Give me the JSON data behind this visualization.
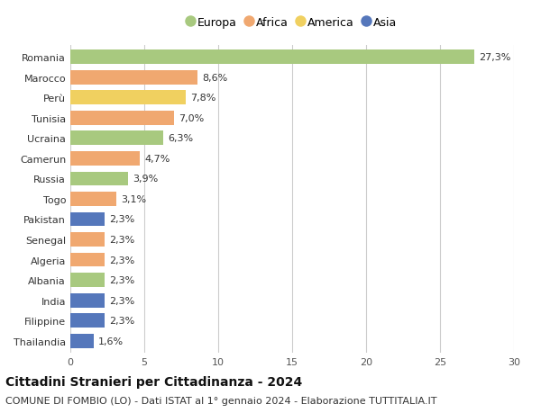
{
  "countries": [
    "Romania",
    "Marocco",
    "Perù",
    "Tunisia",
    "Ucraina",
    "Camerun",
    "Russia",
    "Togo",
    "Pakistan",
    "Senegal",
    "Algeria",
    "Albania",
    "India",
    "Filippine",
    "Thailandia"
  ],
  "values": [
    27.3,
    8.6,
    7.8,
    7.0,
    6.3,
    4.7,
    3.9,
    3.1,
    2.3,
    2.3,
    2.3,
    2.3,
    2.3,
    2.3,
    1.6
  ],
  "labels": [
    "27,3%",
    "8,6%",
    "7,8%",
    "7,0%",
    "6,3%",
    "4,7%",
    "3,9%",
    "3,1%",
    "2,3%",
    "2,3%",
    "2,3%",
    "2,3%",
    "2,3%",
    "2,3%",
    "1,6%"
  ],
  "continents": [
    "Europa",
    "Africa",
    "America",
    "Africa",
    "Europa",
    "Africa",
    "Europa",
    "Africa",
    "Asia",
    "Africa",
    "Africa",
    "Europa",
    "Asia",
    "Asia",
    "Asia"
  ],
  "colors": {
    "Europa": "#a8c97f",
    "Africa": "#f0a870",
    "America": "#f0d060",
    "Asia": "#5577bb"
  },
  "legend_order": [
    "Europa",
    "Africa",
    "America",
    "Asia"
  ],
  "title": "Cittadini Stranieri per Cittadinanza - 2024",
  "subtitle": "COMUNE DI FOMBIO (LO) - Dati ISTAT al 1° gennaio 2024 - Elaborazione TUTTITALIA.IT",
  "xlim": [
    0,
    30
  ],
  "xticks": [
    0,
    5,
    10,
    15,
    20,
    25,
    30
  ],
  "background_color": "#ffffff",
  "grid_color": "#cccccc",
  "bar_height": 0.7,
  "title_fontsize": 10,
  "subtitle_fontsize": 8,
  "tick_fontsize": 8,
  "label_fontsize": 8
}
